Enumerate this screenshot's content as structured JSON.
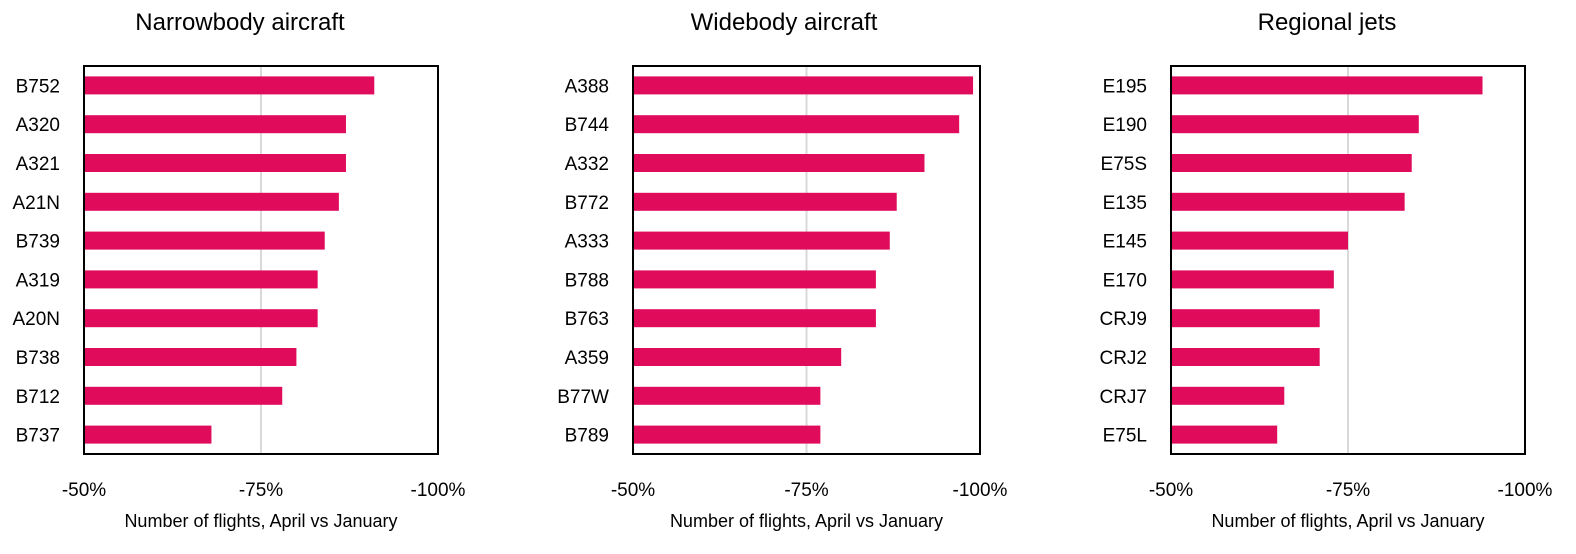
{
  "chart_data": [
    {
      "type": "bar",
      "orientation": "horizontal",
      "title": "Narrowbody aircraft",
      "xlabel": "Number of flights, April vs January",
      "xlim": [
        -50,
        -100
      ],
      "xticks": [
        "-50%",
        "-75%",
        "-100%"
      ],
      "gridline_at": -75,
      "color": "#E00B5B",
      "categories": [
        "B752",
        "A320",
        "A321",
        "A21N",
        "B739",
        "A319",
        "A20N",
        "B738",
        "B712",
        "B737"
      ],
      "values": [
        -91,
        -87,
        -87,
        -86,
        -84,
        -83,
        -83,
        -80,
        -78,
        -68
      ]
    },
    {
      "type": "bar",
      "orientation": "horizontal",
      "title": "Widebody aircraft",
      "xlabel": "Number of flights, April vs January",
      "xlim": [
        -50,
        -100
      ],
      "xticks": [
        "-50%",
        "-75%",
        "-100%"
      ],
      "gridline_at": -75,
      "color": "#E00B5B",
      "categories": [
        "A388",
        "B744",
        "A332",
        "B772",
        "A333",
        "B788",
        "B763",
        "A359",
        "B77W",
        "B789"
      ],
      "values": [
        -99,
        -97,
        -92,
        -88,
        -87,
        -85,
        -85,
        -80,
        -77,
        -77
      ]
    },
    {
      "type": "bar",
      "orientation": "horizontal",
      "title": "Regional jets",
      "xlabel": "Number of flights, April vs January",
      "xlim": [
        -50,
        -100
      ],
      "xticks": [
        "-50%",
        "-75%",
        "-100%"
      ],
      "gridline_at": -75,
      "color": "#E00B5B",
      "categories": [
        "E195",
        "E190",
        "E75S",
        "E135",
        "E145",
        "E170",
        "CRJ9",
        "CRJ2",
        "CRJ7",
        "E75L"
      ],
      "values": [
        -94,
        -85,
        -84,
        -83,
        -75,
        -73,
        -71,
        -71,
        -66,
        -65
      ]
    }
  ]
}
